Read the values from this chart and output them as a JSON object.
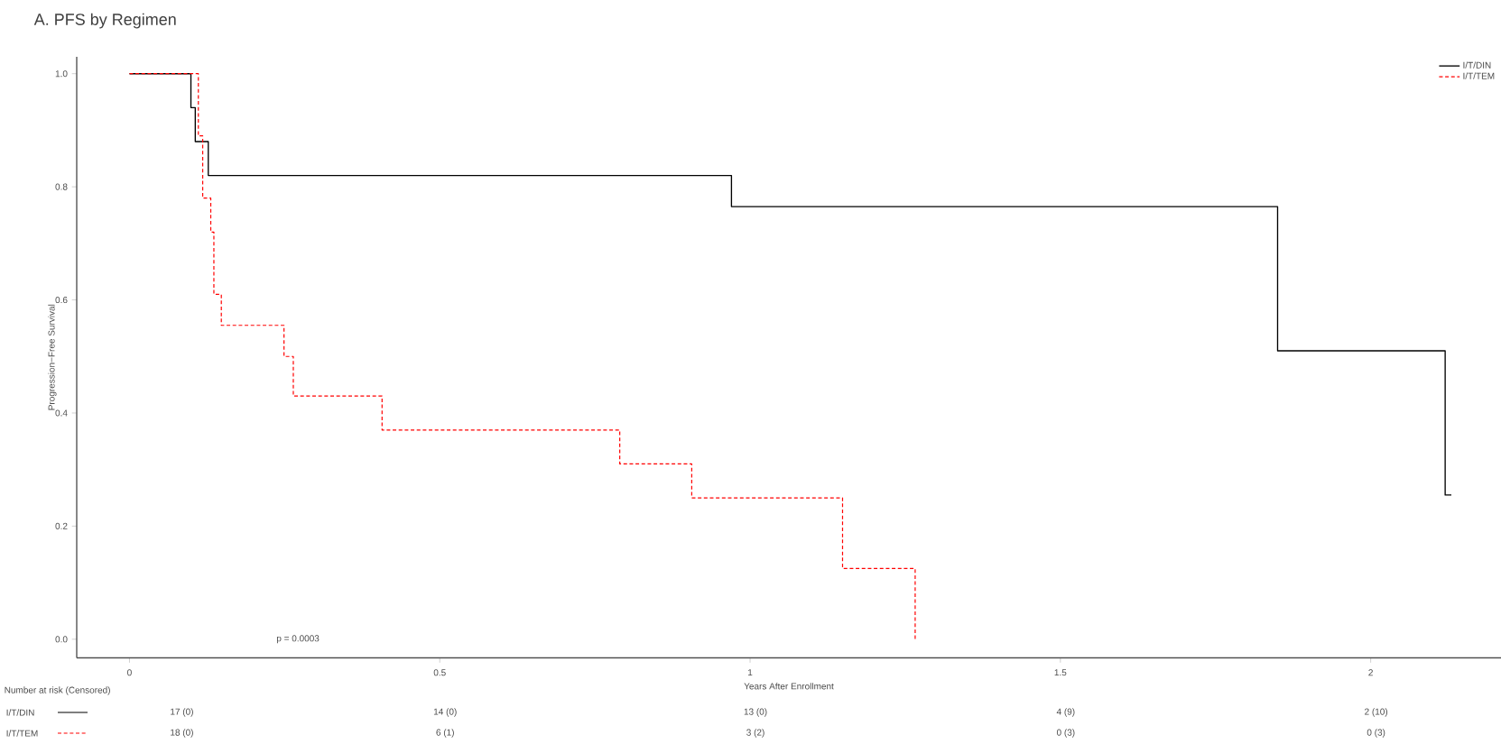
{
  "chart_data": {
    "type": "step",
    "title": "A. PFS by Regimen",
    "xlabel": "Years After Enrollment",
    "ylabel": "Progression−Free Survival",
    "xlim": [
      -0.085,
      2.21
    ],
    "ylim": [
      -0.033,
      1.03
    ],
    "xticks": [
      0,
      0.5,
      1,
      1.5,
      2
    ],
    "yticks": [
      {
        "value": 0,
        "label": "0.0"
      },
      {
        "value": 0.2,
        "label": "0.2"
      },
      {
        "value": 0.4,
        "label": "0.4"
      },
      {
        "value": 0.6,
        "label": "0.6"
      },
      {
        "value": 0.8,
        "label": "0.8"
      },
      {
        "value": 1,
        "label": "1.0"
      }
    ],
    "legend": "top right",
    "grid": false,
    "series": [
      {
        "name": "I/T/DIN",
        "color": "#000000",
        "line_style": "solid",
        "x": [
          0,
          0.099,
          0.106,
          0.127,
          0.97,
          1.85,
          2.12,
          2.13
        ],
        "values": [
          1,
          0.94,
          0.88,
          0.82,
          0.765,
          0.51,
          0.255,
          0.255
        ]
      },
      {
        "name": "I/T/TEM",
        "color": "#ff0000",
        "line_style": "dashed",
        "x": [
          0,
          0.111,
          0.118,
          0.131,
          0.136,
          0.148,
          0.249,
          0.264,
          0.407,
          0.79,
          0.906,
          1.149,
          1.266
        ],
        "values": [
          1,
          0.89,
          0.78,
          0.72,
          0.61,
          0.555,
          0.5,
          0.43,
          0.37,
          0.31,
          0.25,
          0.125,
          0
        ]
      }
    ],
    "annotations": [
      "p = 0.0003",
      "Number at risk (Censored)",
      "17 (0)",
      "14 (0)",
      "13 (0)",
      "4 (9)",
      "2 (10)",
      "18 (0)",
      "6 (1)",
      "3 (2)",
      "0 (3)",
      "0 (3)"
    ]
  }
}
